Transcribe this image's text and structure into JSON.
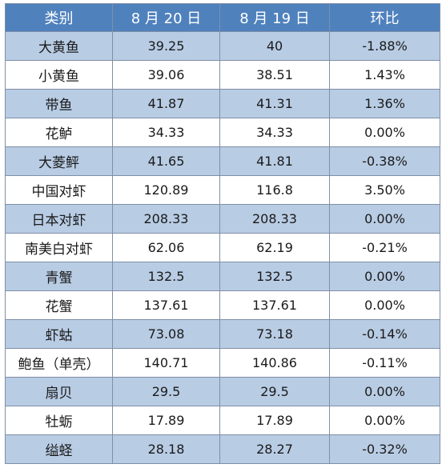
{
  "table": {
    "headers": [
      "类别",
      "8 月 20 日",
      "8 月 19 日",
      "环比"
    ],
    "rows": [
      {
        "category": "大黄鱼",
        "aug20": "39.25",
        "aug19": "40",
        "change": "-1.88%"
      },
      {
        "category": "小黄鱼",
        "aug20": "39.06",
        "aug19": "38.51",
        "change": "1.43%"
      },
      {
        "category": "带鱼",
        "aug20": "41.87",
        "aug19": "41.31",
        "change": "1.36%"
      },
      {
        "category": "花鲈",
        "aug20": "34.33",
        "aug19": "34.33",
        "change": "0.00%"
      },
      {
        "category": "大菱鲆",
        "aug20": "41.65",
        "aug19": "41.81",
        "change": "-0.38%"
      },
      {
        "category": "中国对虾",
        "aug20": "120.89",
        "aug19": "116.8",
        "change": "3.50%"
      },
      {
        "category": "日本对虾",
        "aug20": "208.33",
        "aug19": "208.33",
        "change": "0.00%"
      },
      {
        "category": "南美白对虾",
        "aug20": "62.06",
        "aug19": "62.19",
        "change": "-0.21%"
      },
      {
        "category": "青蟹",
        "aug20": "132.5",
        "aug19": "132.5",
        "change": "0.00%"
      },
      {
        "category": "花蟹",
        "aug20": "137.61",
        "aug19": "137.61",
        "change": "0.00%"
      },
      {
        "category": "虾蛄",
        "aug20": "73.08",
        "aug19": "73.18",
        "change": "-0.14%"
      },
      {
        "category": "鲍鱼（单壳）",
        "aug20": "140.71",
        "aug19": "140.86",
        "change": "-0.11%"
      },
      {
        "category": "扇贝",
        "aug20": "29.5",
        "aug19": "29.5",
        "change": "0.00%"
      },
      {
        "category": "牡蛎",
        "aug20": "17.89",
        "aug19": "17.89",
        "change": "0.00%"
      },
      {
        "category": "缢蛏",
        "aug20": "28.18",
        "aug19": "28.27",
        "change": "-0.32%"
      }
    ]
  },
  "colors": {
    "header_bg": "#4f81bd",
    "alt_row_bg": "#b8cce4",
    "plain_row_bg": "#ffffff",
    "border": "#7f8fa6"
  }
}
